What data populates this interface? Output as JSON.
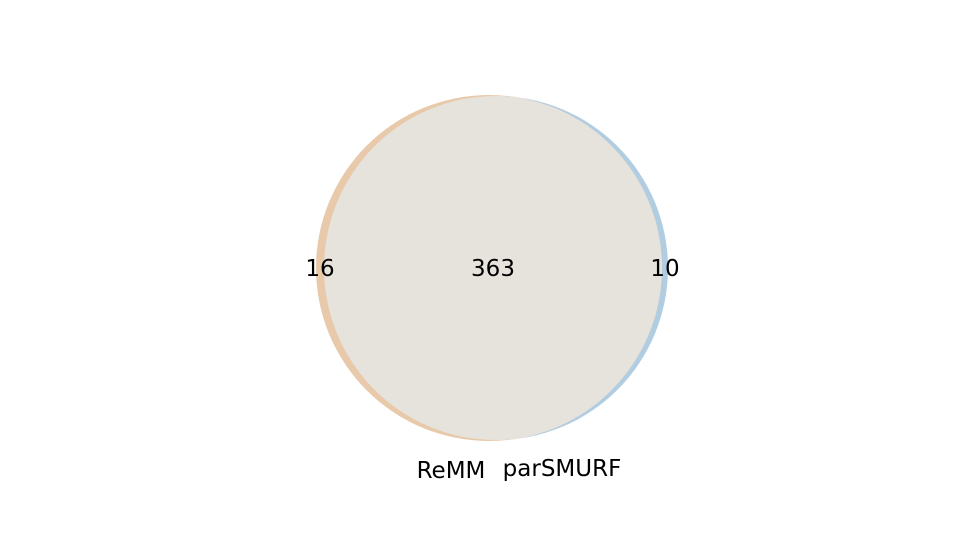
{
  "chart_data": {
    "type": "venn",
    "sets": [
      {
        "name": "ReMM",
        "only_count": "16",
        "color": "#e8c9aa"
      },
      {
        "name": "parSMURF",
        "only_count": "10",
        "color": "#b1cde2"
      }
    ],
    "intersection": {
      "count": "363",
      "color": "#e6e2dc"
    },
    "title": ""
  }
}
